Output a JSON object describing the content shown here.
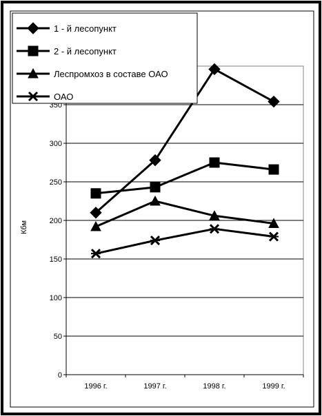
{
  "chart_data": {
    "type": "line",
    "title": "",
    "xlabel": "",
    "ylabel": "Кбм",
    "categories": [
      "1996 г.",
      "1997 г.",
      "1998 г.",
      "1999 г."
    ],
    "ylim": [
      0,
      400
    ],
    "yticks": [
      0,
      50,
      100,
      150,
      200,
      250,
      300,
      350
    ],
    "grid": true,
    "legend_position": "top-left",
    "series": [
      {
        "name": "1 - й лесопункт",
        "marker": "diamond",
        "values": [
          210,
          278,
          396,
          354
        ]
      },
      {
        "name": "2 - й лесопункт",
        "marker": "square",
        "values": [
          235,
          243,
          275,
          266
        ]
      },
      {
        "name": "Леспромхоз в составе ОАО",
        "marker": "triangle",
        "values": [
          192,
          225,
          206,
          196
        ]
      },
      {
        "name": "ОАО",
        "marker": "star",
        "values": [
          157,
          174,
          189,
          179
        ]
      }
    ],
    "colors": {
      "line": "#000000",
      "background": "#ffffff"
    }
  }
}
